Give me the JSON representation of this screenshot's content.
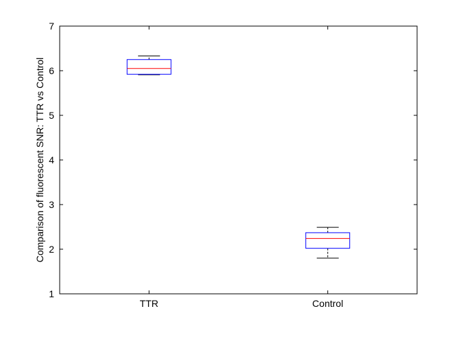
{
  "chart_data": {
    "type": "box",
    "ylabel": "Comparison of fluorescent SNR: TTR vs Control",
    "xlabel": "",
    "categories": [
      "TTR",
      "Control"
    ],
    "ylim": [
      1,
      7
    ],
    "yticks": [
      1,
      2,
      3,
      4,
      5,
      6,
      7
    ],
    "grid": false,
    "series": [
      {
        "category": "TTR",
        "whisker_low": 5.91,
        "q1": 5.92,
        "median": 6.05,
        "q3": 6.25,
        "whisker_high": 6.33
      },
      {
        "category": "Control",
        "whisker_low": 1.8,
        "q1": 2.02,
        "median": 2.24,
        "q3": 2.37,
        "whisker_high": 2.49
      }
    ]
  },
  "colors": {
    "box": "#0000ff",
    "median": "#ff0000",
    "whisker": "#000000",
    "axis": "#000000",
    "background": "#ffffff"
  }
}
